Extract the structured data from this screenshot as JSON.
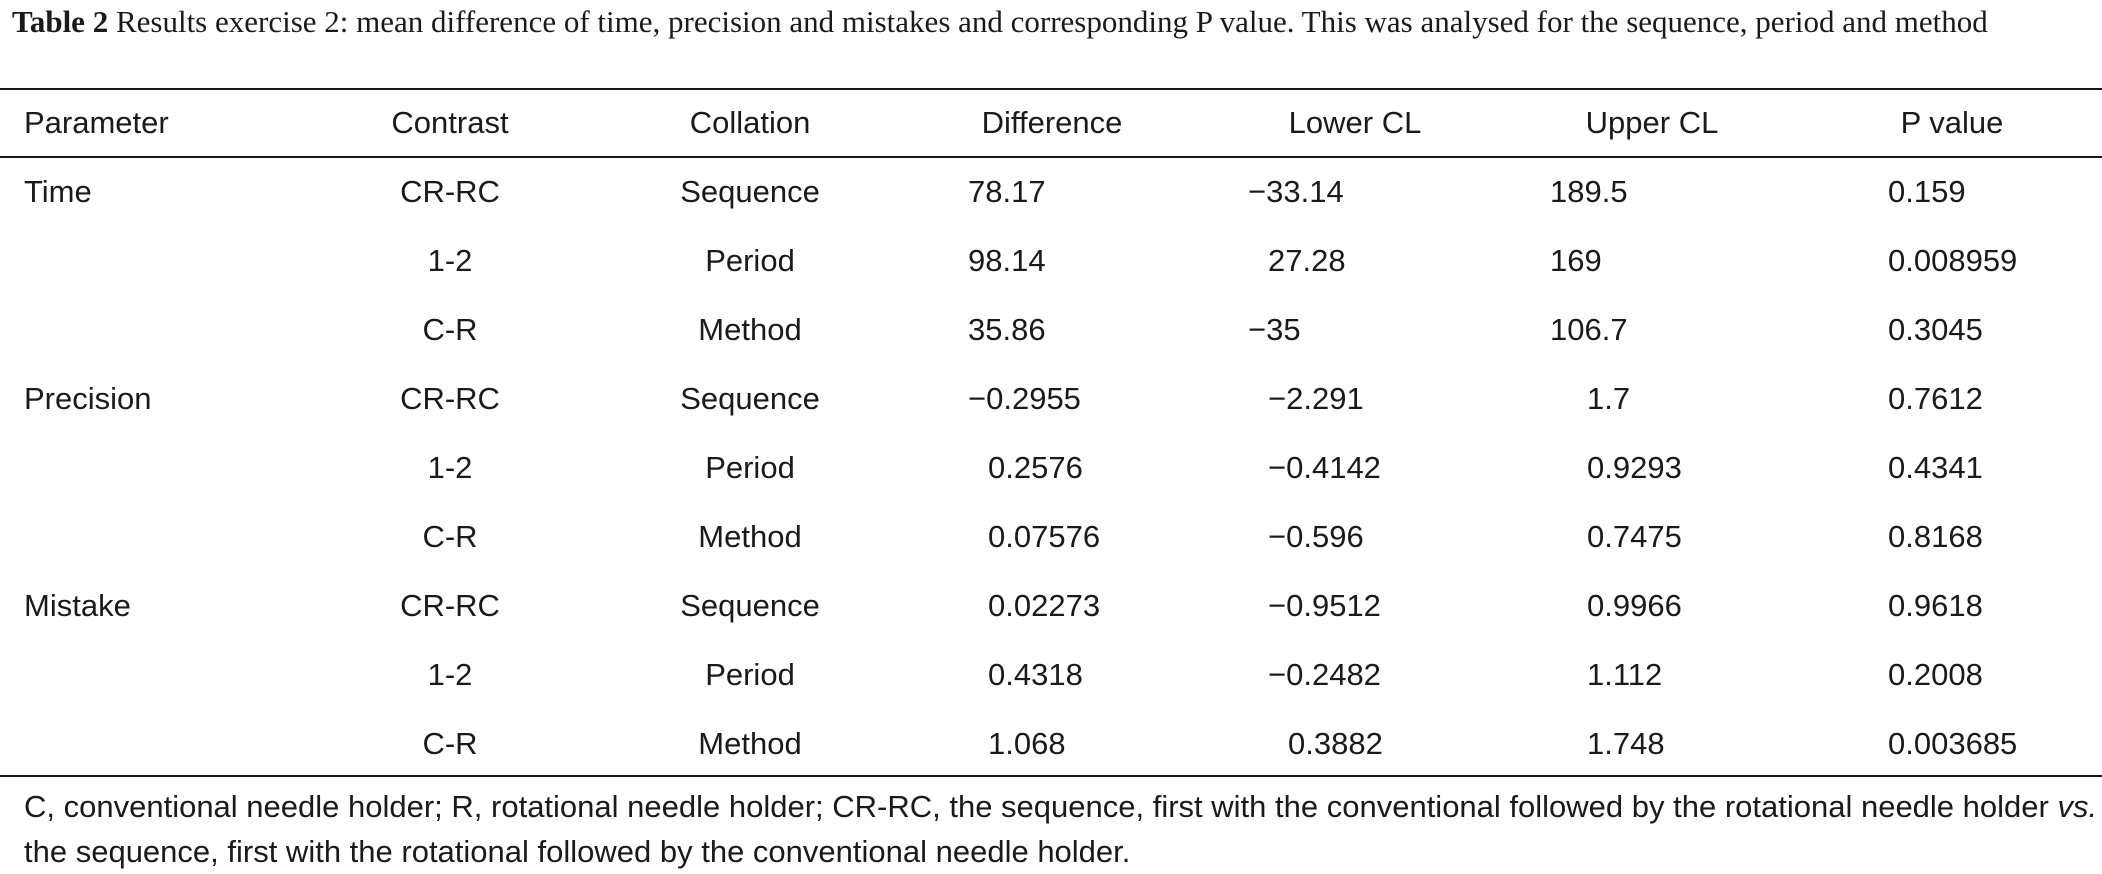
{
  "caption": {
    "label": "Table 2",
    "text": "Results exercise 2: mean difference of time, precision and mistakes and corresponding P value. This was analysed for the sequence, period and method"
  },
  "table": {
    "headers": [
      "Parameter",
      "Contrast",
      "Collation",
      "Difference",
      "Lower CL",
      "Upper CL",
      "P value"
    ],
    "rows": [
      [
        "Time",
        "CR-RC",
        "Sequence",
        "78.17",
        "−33.14",
        "189.5",
        "0.159"
      ],
      [
        "",
        "1-2",
        "Period",
        "98.14",
        "27.28",
        "169",
        "0.008959"
      ],
      [
        "",
        "C-R",
        "Method",
        "35.86",
        "−35",
        "106.7",
        "0.3045"
      ],
      [
        "Precision",
        "CR-RC",
        "Sequence",
        "−0.2955",
        "−2.291",
        "1.7",
        "0.7612"
      ],
      [
        "",
        "1-2",
        "Period",
        "0.2576",
        "−0.4142",
        "0.9293",
        "0.4341"
      ],
      [
        "",
        "C-R",
        "Method",
        "0.07576",
        "−0.596",
        "0.7475",
        "0.8168"
      ],
      [
        "Mistake",
        "CR-RC",
        "Sequence",
        "0.02273",
        "−0.9512",
        "0.9966",
        "0.9618"
      ],
      [
        "",
        "1-2",
        "Period",
        "0.4318",
        "−0.2482",
        "1.112",
        "0.2008"
      ],
      [
        "",
        "C-R",
        "Method",
        "1.068",
        "0.3882",
        "1.748",
        "0.003685"
      ]
    ]
  },
  "footnote": {
    "part1": "C, conventional needle holder; R, rotational needle holder; CR-RC, the sequence, first with the conventional followed by the rotational needle holder ",
    "vs": "vs.",
    "part2": " the sequence, first with the rotational followed by the conventional needle holder."
  }
}
